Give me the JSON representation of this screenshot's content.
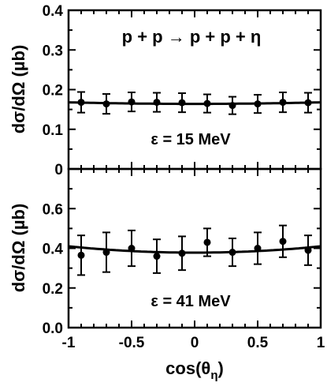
{
  "chart_data": [
    {
      "type": "scatter",
      "panel": "top",
      "reaction": "p + p → p + p + η",
      "annotation": "ε = 15 MeV",
      "ylabel": "dσ/dΩ (µb)",
      "xlim": [
        -1,
        1
      ],
      "ylim": [
        0,
        0.4
      ],
      "xticks": [
        "-1",
        "-0.5",
        "0",
        "0.5",
        "1"
      ],
      "yticks": [
        "0",
        "0.1",
        "0.2",
        "0.3",
        "0.4"
      ],
      "series": [
        {
          "x": [
            -0.9,
            -0.7,
            -0.5,
            -0.3,
            -0.1,
            0.1,
            0.3,
            0.5,
            0.7,
            0.9
          ],
          "values": [
            0.168,
            0.164,
            0.169,
            0.168,
            0.167,
            0.165,
            0.16,
            0.164,
            0.168,
            0.167
          ],
          "errors": [
            0.026,
            0.025,
            0.024,
            0.024,
            0.024,
            0.023,
            0.022,
            0.023,
            0.025,
            0.025
          ]
        }
      ],
      "fit": {
        "x": [
          -1,
          -0.5,
          0,
          0.5,
          1
        ],
        "y": [
          0.168,
          0.166,
          0.164,
          0.166,
          0.168
        ]
      }
    },
    {
      "type": "scatter",
      "panel": "bottom",
      "annotation": "ε = 41 MeV",
      "xlabel": "cos(θη)",
      "ylabel": "dσ/dΩ (µb)",
      "xlim": [
        -1,
        1
      ],
      "ylim": [
        0,
        0.8
      ],
      "xticks": [
        "-1",
        "-0.5",
        "0",
        "0.5",
        "1"
      ],
      "yticks": [
        "0.0",
        "0.2",
        "0.4",
        "0.6"
      ],
      "series": [
        {
          "x": [
            -0.9,
            -0.7,
            -0.5,
            -0.3,
            -0.1,
            0.1,
            0.3,
            0.5,
            0.7,
            0.9
          ],
          "values": [
            0.365,
            0.38,
            0.4,
            0.36,
            0.375,
            0.43,
            0.38,
            0.4,
            0.435,
            0.39
          ],
          "errors": [
            0.1,
            0.1,
            0.09,
            0.085,
            0.085,
            0.07,
            0.07,
            0.08,
            0.08,
            0.075
          ]
        }
      ],
      "fit": {
        "x": [
          -1,
          -0.5,
          0,
          0.5,
          1
        ],
        "y": [
          0.41,
          0.392,
          0.378,
          0.392,
          0.41
        ]
      }
    }
  ]
}
